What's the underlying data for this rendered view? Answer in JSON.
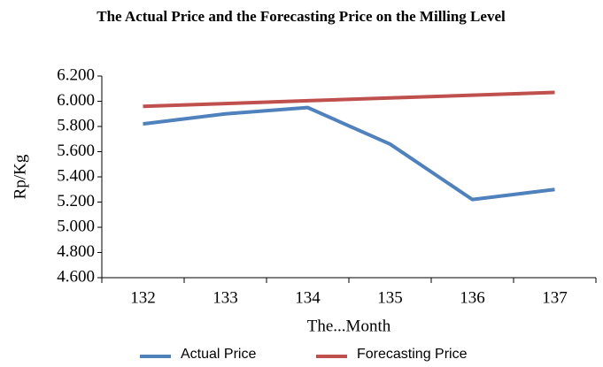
{
  "chart_data": {
    "type": "line",
    "title": "The Actual Price and the Forecasting Price on the Milling Level",
    "x_label": "The...Month",
    "y_label": "Rp/Kg",
    "categories": [
      "132",
      "133",
      "134",
      "135",
      "136",
      "137"
    ],
    "series": [
      {
        "name": "Actual Price",
        "color": "#4f81bd",
        "values": [
          5820,
          5900,
          5950,
          5660,
          5220,
          5300
        ]
      },
      {
        "name": "Forecasting Price",
        "color": "#c0504d",
        "values": [
          5960,
          5982,
          6004,
          6026,
          6048,
          6070
        ]
      }
    ],
    "ylim": [
      4600,
      6200
    ],
    "yticks": [
      {
        "value": 4600,
        "label": "4.600"
      },
      {
        "value": 4800,
        "label": "4.800"
      },
      {
        "value": 5000,
        "label": "5.000"
      },
      {
        "value": 5200,
        "label": "5.200"
      },
      {
        "value": 5400,
        "label": "5.400"
      },
      {
        "value": 5600,
        "label": "5.600"
      },
      {
        "value": 5800,
        "label": "5.800"
      },
      {
        "value": 6000,
        "label": "6.000"
      },
      {
        "value": 6200,
        "label": "6.200"
      }
    ],
    "grid": false,
    "legend": "bottom"
  }
}
